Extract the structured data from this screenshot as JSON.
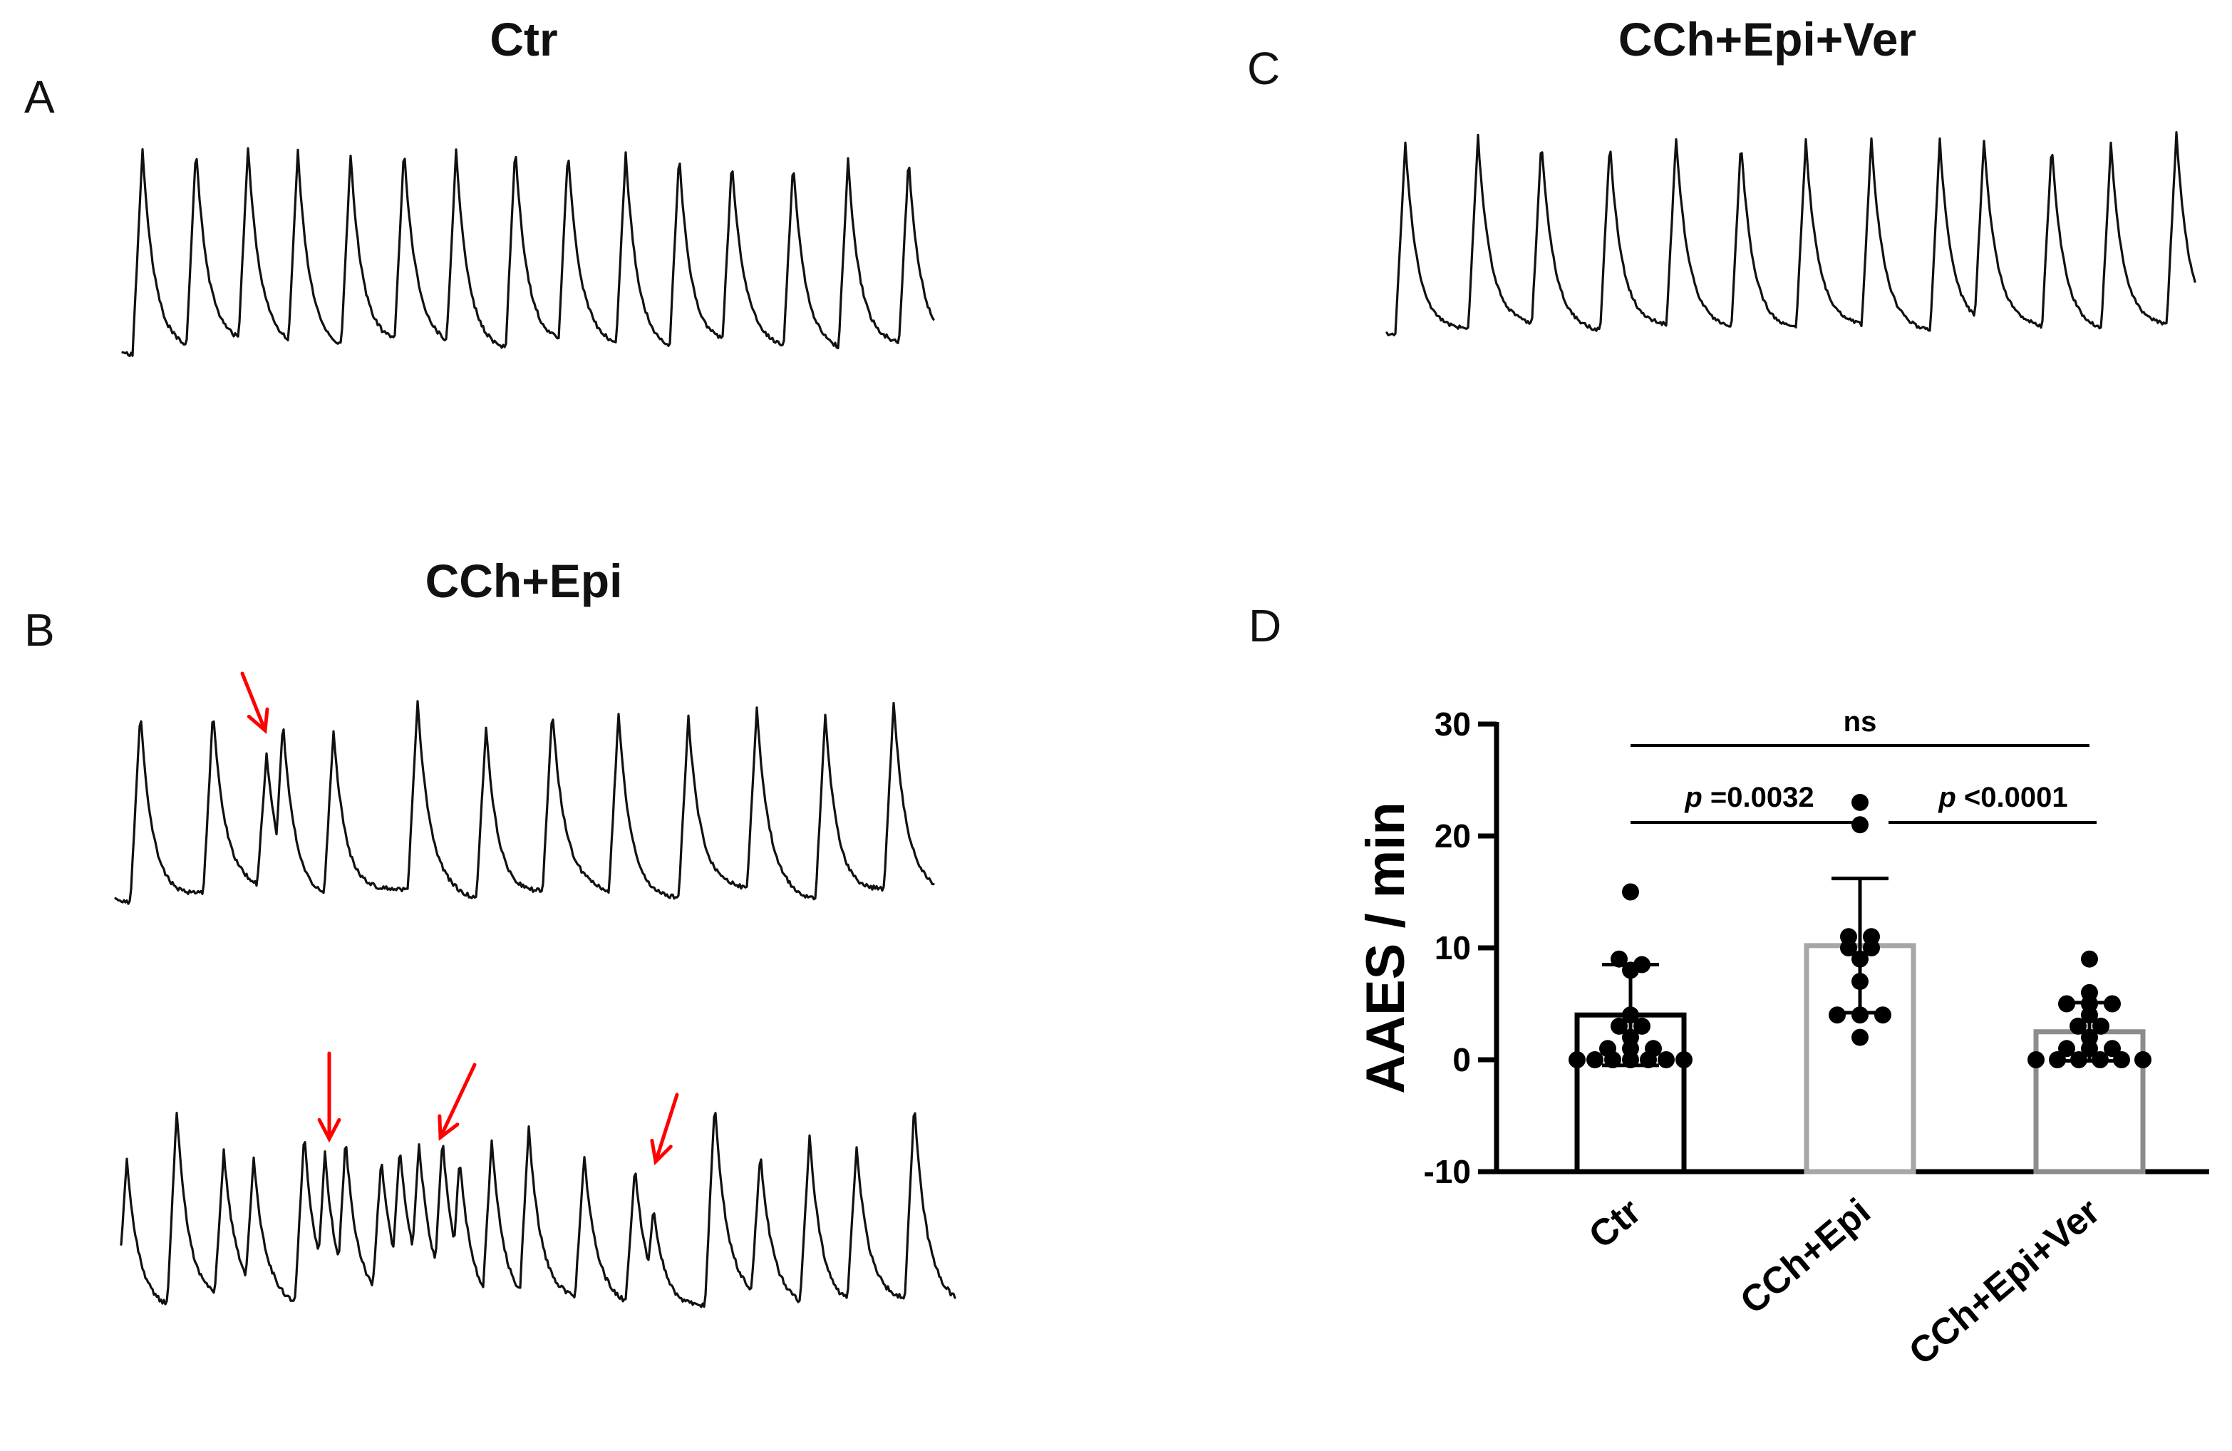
{
  "panels": {
    "a": {
      "letter": "A",
      "title": "Ctr"
    },
    "b": {
      "letter": "B",
      "title": "CCh+Epi"
    },
    "c": {
      "letter": "C",
      "title": "CCh+Epi+Ver"
    },
    "d": {
      "letter": "D"
    }
  },
  "colors": {
    "trace": "#111111",
    "arrow": "#ff0000",
    "bar_ctr": "#000000",
    "bar_cch_epi": "#a6a6a6",
    "bar_cch_epi_ver": "#8c8c8c"
  },
  "chart_data": {
    "type": "bar",
    "ylabel": "AAES / min",
    "ylim": [
      -10,
      30
    ],
    "yticks": [
      "30",
      "20",
      "10",
      "0",
      "-10"
    ],
    "categories": [
      "Ctr",
      "CCh+Epi",
      "CCh+Epi+Ver"
    ],
    "values": [
      4.0,
      10.2,
      2.5
    ],
    "sd": [
      4.5,
      6.0,
      2.6
    ],
    "points": [
      [
        15,
        9,
        8.5,
        8,
        4,
        3,
        3,
        2,
        1,
        1,
        1,
        0,
        0,
        0,
        0,
        0,
        0,
        0
      ],
      [
        23,
        21,
        11,
        11,
        10,
        10,
        9,
        7,
        4,
        4,
        4,
        2
      ],
      [
        9,
        6,
        5,
        5,
        5,
        4,
        3,
        3,
        2,
        1,
        1,
        1,
        0,
        0,
        0,
        0,
        0,
        0
      ]
    ],
    "significance": [
      {
        "from": "Ctr",
        "to": "CCh+Epi+Ver",
        "label": "ns"
      },
      {
        "from": "Ctr",
        "to": "CCh+Epi",
        "label_p": "p",
        "label_value": " =0.0032"
      },
      {
        "from": "CCh+Epi",
        "to": "CCh+Epi+Ver",
        "label_p": "p",
        "label_value": " <0.0001"
      }
    ]
  }
}
